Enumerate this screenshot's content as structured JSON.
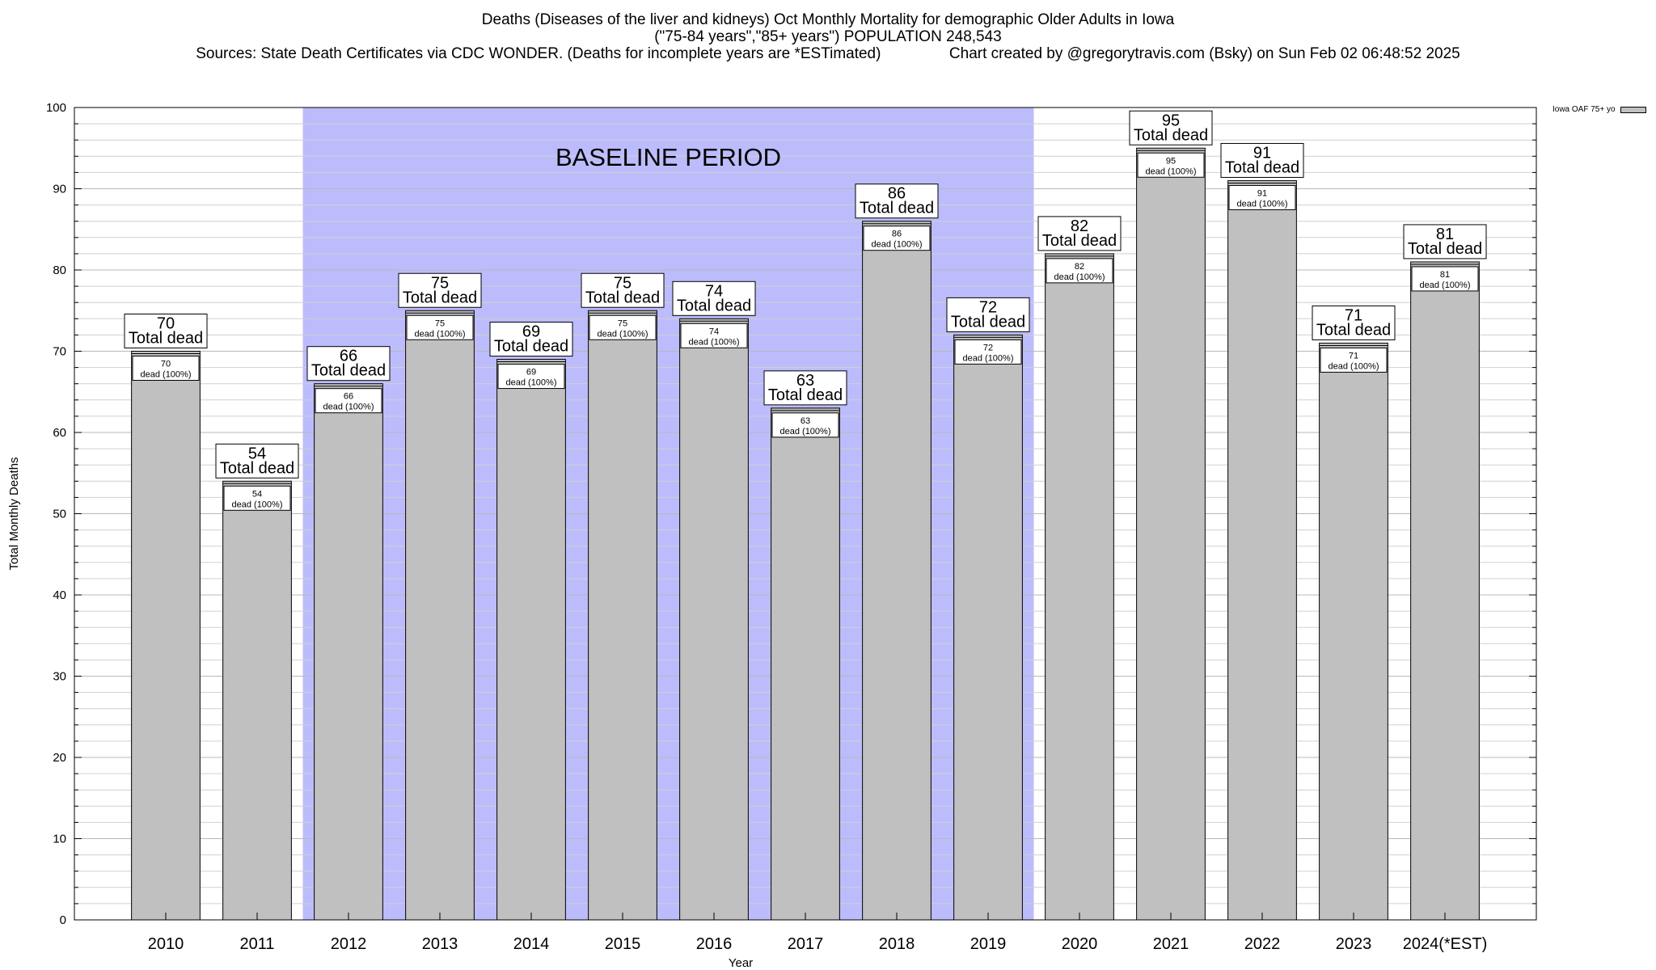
{
  "header": {
    "title_line1": "Deaths (Diseases of the liver and kidneys) Oct Monthly Mortality for demographic Older Adults in Iowa",
    "title_line2": "(\"75-84 years\",\"85+ years\") POPULATION 248,543",
    "title_line3": "Sources: State Death Certificates via CDC WONDER. (Deaths for incomplete years are *ESTimated)                Chart created by @gregorytravis.com (Bsky) on Sun Feb 02 06:48:52 2025"
  },
  "chart_data": {
    "type": "bar",
    "categories": [
      "2010",
      "2011",
      "2012",
      "2013",
      "2014",
      "2015",
      "2016",
      "2017",
      "2018",
      "2019",
      "2020",
      "2021",
      "2022",
      "2023",
      "2024(*EST)"
    ],
    "series": [
      {
        "name": "Iowa OAF 75+ yo",
        "values": [
          70,
          54,
          66,
          75,
          69,
          75,
          74,
          63,
          86,
          72,
          82,
          95,
          91,
          71,
          81
        ]
      }
    ],
    "bar_color": "#c0c0c0",
    "xlabel": "Year",
    "ylabel": "Total Monthly Deaths",
    "ylim": [
      0,
      100
    ],
    "yticks": [
      0,
      10,
      20,
      30,
      40,
      50,
      60,
      70,
      80,
      90,
      100
    ],
    "minor_tick_step": 2,
    "grid": true,
    "legend_position": "top-right",
    "baseline_band": {
      "label": "BASELINE PERIOD",
      "from_category": "2012",
      "to_category": "2019",
      "color": "#bcbcfc"
    },
    "top_label_suffix": "Total dead",
    "inner_label_suffix": "dead (100%)"
  }
}
